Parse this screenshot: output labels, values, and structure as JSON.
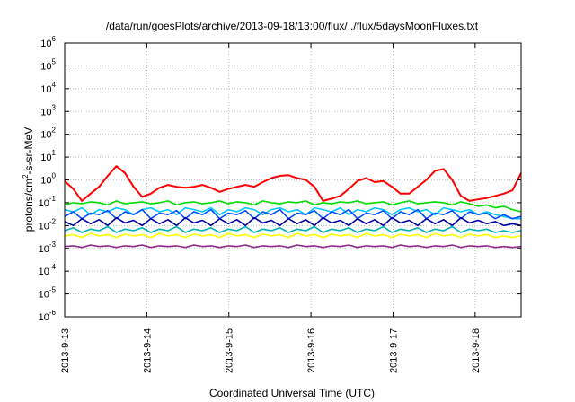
{
  "chart_data": {
    "type": "line",
    "title": "/data/run/goesPlots/archive/2013-09-18/13:00/flux/../flux/5daysMoonFluxes.txt",
    "xlabel": "Coordinated Universal Time (UTC)",
    "ylabel": {
      "prefix": "protons/cm",
      "superscript": "2",
      "suffix": "-s-sr-MeV"
    },
    "yscale": "log",
    "ylim_exponents": [
      -6,
      6
    ],
    "yticks": [
      {
        "base": "10",
        "exp": "-6"
      },
      {
        "base": "10",
        "exp": "-5"
      },
      {
        "base": "10",
        "exp": "-4"
      },
      {
        "base": "10",
        "exp": "-3"
      },
      {
        "base": "10",
        "exp": "-2"
      },
      {
        "base": "10",
        "exp": "-1"
      },
      {
        "base": "10",
        "exp": "0"
      },
      {
        "base": "10",
        "exp": "1"
      },
      {
        "base": "10",
        "exp": "2"
      },
      {
        "base": "10",
        "exp": "3"
      },
      {
        "base": "10",
        "exp": "4"
      },
      {
        "base": "10",
        "exp": "5"
      },
      {
        "base": "10",
        "exp": "6"
      }
    ],
    "xlim_days": [
      0,
      5.56
    ],
    "xticks": [
      "2013-9-13",
      "2013-9-14",
      "2013-9-15",
      "2013-9-16",
      "2013-9-17",
      "2013-9-18"
    ],
    "grid": true,
    "series": [
      {
        "color": "#ff0000",
        "values": [
          0.9,
          0.4,
          0.12,
          0.25,
          0.5,
          1.5,
          4.0,
          2.0,
          0.5,
          0.18,
          0.25,
          0.45,
          0.6,
          0.5,
          0.45,
          0.5,
          0.6,
          0.45,
          0.3,
          0.4,
          0.5,
          0.6,
          0.5,
          0.8,
          1.2,
          1.5,
          1.6,
          1.2,
          1.0,
          0.5,
          0.12,
          0.15,
          0.2,
          0.4,
          0.9,
          1.2,
          0.8,
          0.9,
          0.5,
          0.25,
          0.25,
          0.5,
          1.0,
          2.5,
          3.0,
          1.0,
          0.2,
          0.12,
          0.14,
          0.16,
          0.2,
          0.25,
          0.35,
          2.0
        ]
      },
      {
        "color": "#00dd00",
        "values": [
          0.08,
          0.1,
          0.09,
          0.11,
          0.1,
          0.08,
          0.12,
          0.09,
          0.1,
          0.11,
          0.09,
          0.1,
          0.12,
          0.08,
          0.1,
          0.11,
          0.09,
          0.1,
          0.12,
          0.09,
          0.11,
          0.1,
          0.08,
          0.12,
          0.1,
          0.09,
          0.11,
          0.1,
          0.12,
          0.08,
          0.1,
          0.09,
          0.11,
          0.1,
          0.12,
          0.09,
          0.1,
          0.11,
          0.08,
          0.1,
          0.12,
          0.09,
          0.1,
          0.11,
          0.1,
          0.08,
          0.11,
          0.09,
          0.07,
          0.08,
          0.06,
          0.07,
          0.05,
          0.04
        ]
      },
      {
        "color": "#00c8ff",
        "values": [
          0.05,
          0.04,
          0.06,
          0.03,
          0.05,
          0.04,
          0.06,
          0.05,
          0.03,
          0.05,
          0.06,
          0.04,
          0.05,
          0.03,
          0.06,
          0.05,
          0.04,
          0.06,
          0.03,
          0.05,
          0.04,
          0.06,
          0.05,
          0.03,
          0.05,
          0.06,
          0.04,
          0.05,
          0.03,
          0.06,
          0.05,
          0.04,
          0.06,
          0.03,
          0.05,
          0.04,
          0.06,
          0.05,
          0.03,
          0.05,
          0.06,
          0.04,
          0.05,
          0.03,
          0.06,
          0.05,
          0.04,
          0.05,
          0.03,
          0.04,
          0.03,
          0.025,
          0.02,
          0.02
        ]
      },
      {
        "color": "#0050ff",
        "values": [
          0.025,
          0.04,
          0.02,
          0.035,
          0.03,
          0.045,
          0.02,
          0.04,
          0.03,
          0.05,
          0.02,
          0.035,
          0.03,
          0.045,
          0.02,
          0.04,
          0.03,
          0.05,
          0.02,
          0.035,
          0.03,
          0.045,
          0.02,
          0.04,
          0.03,
          0.05,
          0.02,
          0.035,
          0.03,
          0.045,
          0.02,
          0.04,
          0.03,
          0.05,
          0.02,
          0.035,
          0.03,
          0.045,
          0.02,
          0.04,
          0.03,
          0.05,
          0.02,
          0.035,
          0.03,
          0.045,
          0.02,
          0.04,
          0.03,
          0.035,
          0.02,
          0.03,
          0.02,
          0.025
        ]
      },
      {
        "color": "#0000a0",
        "values": [
          0.015,
          0.01,
          0.02,
          0.012,
          0.018,
          0.01,
          0.022,
          0.013,
          0.017,
          0.01,
          0.02,
          0.012,
          0.018,
          0.01,
          0.022,
          0.013,
          0.017,
          0.01,
          0.02,
          0.012,
          0.018,
          0.01,
          0.022,
          0.013,
          0.017,
          0.01,
          0.02,
          0.012,
          0.018,
          0.01,
          0.022,
          0.013,
          0.017,
          0.01,
          0.02,
          0.012,
          0.018,
          0.01,
          0.022,
          0.013,
          0.017,
          0.01,
          0.02,
          0.012,
          0.018,
          0.01,
          0.022,
          0.013,
          0.017,
          0.012,
          0.015,
          0.01,
          0.012,
          0.01
        ]
      },
      {
        "color": "#00b0b0",
        "values": [
          0.006,
          0.008,
          0.005,
          0.007,
          0.006,
          0.009,
          0.005,
          0.007,
          0.006,
          0.008,
          0.005,
          0.007,
          0.006,
          0.009,
          0.005,
          0.007,
          0.006,
          0.008,
          0.005,
          0.007,
          0.006,
          0.009,
          0.005,
          0.007,
          0.006,
          0.008,
          0.005,
          0.007,
          0.006,
          0.009,
          0.005,
          0.007,
          0.006,
          0.008,
          0.005,
          0.007,
          0.006,
          0.009,
          0.005,
          0.007,
          0.006,
          0.008,
          0.005,
          0.007,
          0.006,
          0.009,
          0.005,
          0.007,
          0.006,
          0.007,
          0.005,
          0.006,
          0.005,
          0.006
        ]
      },
      {
        "color": "#ffff00",
        "values": [
          0.0035,
          0.004,
          0.003,
          0.0045,
          0.0035,
          0.004,
          0.003,
          0.0042,
          0.0035,
          0.004,
          0.003,
          0.0045,
          0.0035,
          0.004,
          0.003,
          0.0042,
          0.0035,
          0.004,
          0.003,
          0.0045,
          0.0035,
          0.004,
          0.003,
          0.0042,
          0.0035,
          0.004,
          0.003,
          0.0045,
          0.0035,
          0.004,
          0.003,
          0.0042,
          0.0035,
          0.004,
          0.003,
          0.0045,
          0.0035,
          0.004,
          0.003,
          0.0042,
          0.0035,
          0.004,
          0.003,
          0.0045,
          0.0035,
          0.004,
          0.003,
          0.0042,
          0.0035,
          0.004,
          0.003,
          0.0035,
          0.003,
          0.0035
        ]
      },
      {
        "color": "#8b2a8b",
        "values": [
          0.0012,
          0.0013,
          0.0011,
          0.0014,
          0.0012,
          0.0013,
          0.0011,
          0.0013,
          0.0012,
          0.0014,
          0.0011,
          0.0013,
          0.0012,
          0.0013,
          0.0011,
          0.0014,
          0.0012,
          0.0013,
          0.0011,
          0.0013,
          0.0012,
          0.0014,
          0.0011,
          0.0013,
          0.0012,
          0.0013,
          0.0011,
          0.0014,
          0.0012,
          0.0013,
          0.0011,
          0.0013,
          0.0012,
          0.0014,
          0.0011,
          0.0013,
          0.0012,
          0.0013,
          0.0011,
          0.0014,
          0.0012,
          0.0013,
          0.0011,
          0.0013,
          0.0012,
          0.0014,
          0.0011,
          0.0013,
          0.0012,
          0.0013,
          0.0011,
          0.0012,
          0.0011,
          0.0012
        ]
      }
    ]
  }
}
